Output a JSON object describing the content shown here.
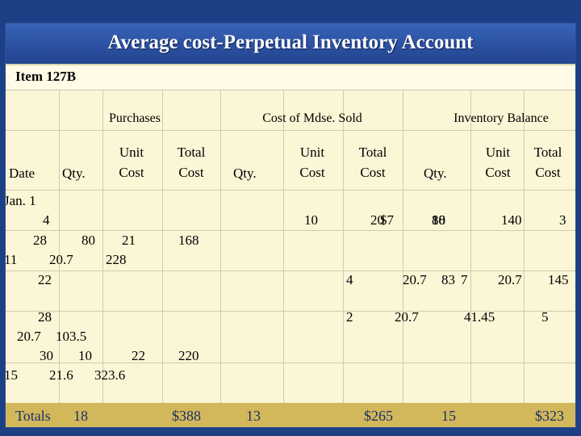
{
  "title": "Average cost-Perpetual Inventory Account",
  "item_label": "Item 127B",
  "headers": {
    "purchases": "Purchases",
    "cost_sold": "Cost of Mdse. Sold",
    "inventory_balance": "Inventory Balance",
    "date": "Date",
    "qty_p": "Qty.",
    "unit_cost_p": [
      "Unit",
      "Cost"
    ],
    "total_cost_p": [
      "Total",
      "Cost"
    ],
    "qty_s": "Qty.",
    "unit_cost_s": [
      "Unit",
      "Cost"
    ],
    "total_cost_s": [
      "Total",
      "Cost"
    ],
    "qty_b": "Qty.",
    "unit_cost_b": [
      "Unit",
      "Cost"
    ],
    "total_cost_b": [
      "Total",
      "Cost"
    ]
  },
  "cells": [
    {
      "text": "Jan.  1"
    },
    {
      "text": "4"
    },
    {
      "text": "10"
    },
    {
      "text": "20"
    },
    {
      "text": "$7"
    },
    {
      "text": "140"
    },
    {
      "text": "3"
    },
    {
      "text": "10"
    },
    {
      "text": "8"
    },
    {
      "text": "18"
    },
    {
      "text": "80"
    },
    {
      "text": "21"
    },
    {
      "text": "168"
    },
    {
      "text": "28"
    },
    {
      "text": "11"
    },
    {
      "text": "20.7"
    },
    {
      "text": "228"
    },
    {
      "text": "22"
    },
    {
      "text": "4"
    },
    {
      "text": "20.7"
    },
    {
      "text": "83"
    },
    {
      "text": "7"
    },
    {
      "text": "20.7"
    },
    {
      "text": "145"
    },
    {
      "text": "28"
    },
    {
      "text": "2"
    },
    {
      "text": "20.7"
    },
    {
      "text": "41.45"
    },
    {
      "text": "5"
    },
    {
      "text": "20.7"
    },
    {
      "text": "103.5"
    },
    {
      "text": "30"
    },
    {
      "text": "10"
    },
    {
      "text": "22"
    },
    {
      "text": "220"
    },
    {
      "text": "15"
    },
    {
      "text": "21.6"
    },
    {
      "text": "323.6"
    }
  ],
  "totals": {
    "label": "Totals",
    "qty_purchased": "18",
    "cost_purchased": "$388",
    "qty_sold": "13",
    "cost_sold": "$265",
    "qty_balance": "15",
    "cost_balance": "$323"
  }
}
